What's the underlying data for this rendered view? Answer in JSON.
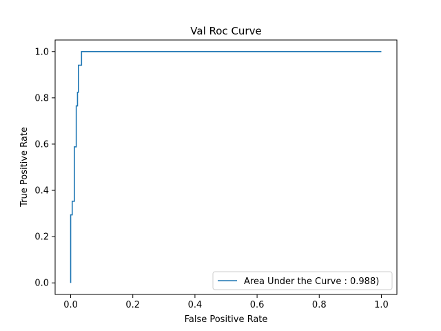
{
  "chart_data": {
    "type": "line",
    "title": "Val Roc Curve",
    "xlabel": "False Positive Rate",
    "ylabel": "True Positive Rate",
    "xlim": [
      -0.05,
      1.05
    ],
    "ylim": [
      -0.05,
      1.05
    ],
    "xticks": [
      "0.0",
      "0.2",
      "0.4",
      "0.6",
      "0.8",
      "1.0"
    ],
    "yticks": [
      "0.0",
      "0.2",
      "0.4",
      "0.6",
      "0.8",
      "1.0"
    ],
    "grid": false,
    "legend_position": "lower-right",
    "series": [
      {
        "name": "Area Under the Curve : 0.988)",
        "color": "#1f77b4",
        "x": [
          0.0,
          0.0,
          0.0,
          0.0,
          0.005,
          0.005,
          0.012,
          0.012,
          0.018,
          0.018,
          0.022,
          0.022,
          0.025,
          0.025,
          0.035,
          0.035,
          1.0
        ],
        "y": [
          0.0,
          0.294,
          0.294,
          0.294,
          0.294,
          0.353,
          0.353,
          0.588,
          0.588,
          0.765,
          0.765,
          0.824,
          0.824,
          0.941,
          0.941,
          1.0,
          1.0
        ]
      }
    ]
  }
}
